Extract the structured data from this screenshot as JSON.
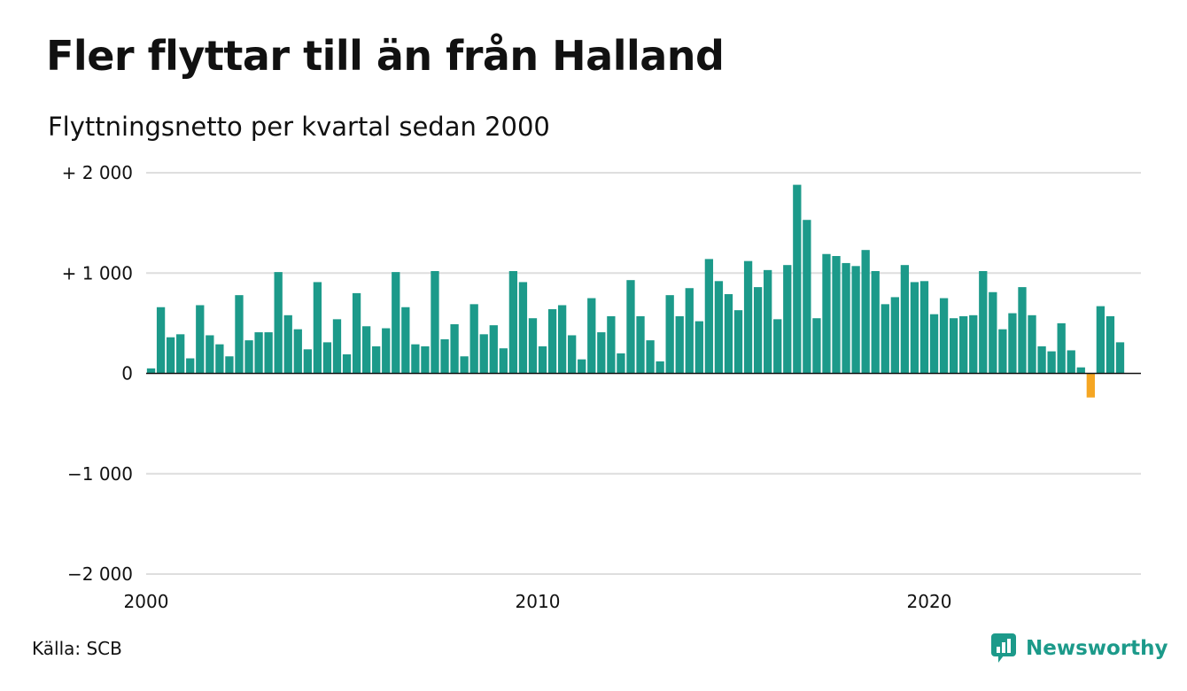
{
  "title": "Fler flyttar till än från Halland",
  "subtitle": "Flyttningsnetto per kvartal sedan 2000",
  "source": "Källa: SCB",
  "brand": {
    "name": "Newsworthy",
    "icon": "newsworthy-logo-icon"
  },
  "chart_data": {
    "type": "bar",
    "x_start_year": 2000,
    "periods_per_year": 4,
    "ylim": [
      -2000,
      2000
    ],
    "y_ticks": [
      2000,
      1000,
      0,
      -1000,
      -2000
    ],
    "y_tick_labels": [
      "+ 2 000",
      "+ 1 000",
      "0",
      "−1 000",
      "−2 000"
    ],
    "x_ticks": [
      2000,
      2010,
      2020
    ],
    "x_tick_labels": [
      "2000",
      "2010",
      "2020"
    ],
    "grid": true,
    "colors": {
      "positive": "#1c9a8a",
      "negative": "#f5a623"
    },
    "values": [
      50,
      660,
      360,
      390,
      150,
      680,
      380,
      290,
      170,
      780,
      330,
      410,
      410,
      1010,
      580,
      440,
      240,
      910,
      310,
      540,
      190,
      800,
      470,
      270,
      450,
      1010,
      660,
      290,
      270,
      1020,
      340,
      490,
      170,
      690,
      390,
      480,
      250,
      1020,
      910,
      550,
      270,
      640,
      680,
      380,
      140,
      750,
      410,
      570,
      200,
      930,
      570,
      330,
      120,
      780,
      570,
      850,
      520,
      1140,
      920,
      790,
      630,
      1120,
      860,
      1030,
      540,
      1080,
      1880,
      1530,
      550,
      1190,
      1170,
      1100,
      1070,
      1230,
      1020,
      690,
      760,
      1080,
      910,
      920,
      590,
      750,
      550,
      570,
      580,
      1020,
      810,
      440,
      600,
      860,
      580,
      270,
      220,
      500,
      230,
      60,
      -240,
      670,
      570,
      310
    ]
  }
}
